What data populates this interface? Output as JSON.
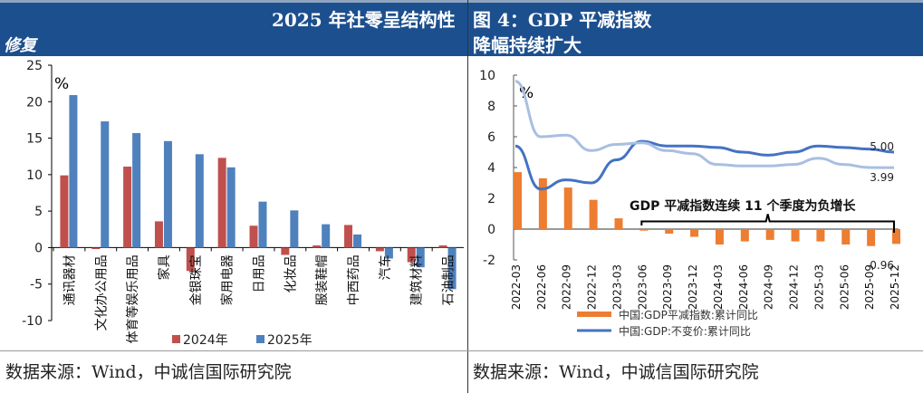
{
  "header": {
    "left_title_line1": "2025 年社零呈结构性",
    "left_title_line2": "修复",
    "right_title_line1": "图 4：GDP 平减指数",
    "right_title_line2": "降幅持续扩大"
  },
  "footer": {
    "left_source": "数据来源：Wind，中诚信国际研究院",
    "right_source": "数据来源：Wind，中诚信国际研究院"
  },
  "chart_data": [
    {
      "type": "bar",
      "unit_label": "%",
      "ylim": [
        -10,
        25
      ],
      "yticks": [
        25,
        20,
        15,
        10,
        5,
        0,
        -5,
        -10
      ],
      "categories": [
        "通讯器材",
        "文化办公用品",
        "体育等娱乐用品",
        "家具",
        "金银珠宝",
        "家用电器",
        "日用品",
        "化妆品",
        "服装鞋帽",
        "中西药品",
        "汽车",
        "建筑材料",
        "石油制品"
      ],
      "series": [
        {
          "name": "2024年",
          "color": "#c0504d",
          "values": [
            9.9,
            -0.2,
            11.1,
            3.6,
            -3.2,
            12.3,
            3.0,
            -1.0,
            0.3,
            3.1,
            -0.5,
            -2.0,
            0.3
          ]
        },
        {
          "name": "2025年",
          "color": "#4f81bd",
          "values": [
            20.9,
            17.3,
            15.7,
            14.6,
            12.8,
            11.0,
            6.3,
            5.1,
            3.2,
            1.8,
            -1.5,
            -2.7,
            -5.7
          ]
        }
      ],
      "legend": "bottom",
      "grid": false
    },
    {
      "type": "bar+line",
      "unit_label": "%",
      "ylim": [
        -2,
        10
      ],
      "yticks": [
        10,
        8,
        6,
        4,
        2,
        0,
        -2
      ],
      "categories": [
        "2022-03",
        "2022-06",
        "2022-09",
        "2022-12",
        "2023-03",
        "2023-06",
        "2023-09",
        "2023-12",
        "2024-03",
        "2024-06",
        "2024-09",
        "2024-12",
        "2025-03",
        "2025-06",
        "2025-09",
        "2025-12"
      ],
      "series": [
        {
          "name": "中国:GDP平减指数:累计同比",
          "kind": "bar",
          "color": "#ed7d31",
          "values": [
            3.7,
            3.3,
            2.7,
            1.9,
            0.7,
            -0.1,
            -0.3,
            -0.5,
            -1.0,
            -0.8,
            -0.7,
            -0.8,
            -0.8,
            -1.0,
            -1.1,
            -0.96
          ]
        },
        {
          "name": "中国:GDP:不变价:累计同比",
          "kind": "line",
          "color": "#4472c4",
          "values": [
            5.4,
            2.6,
            3.2,
            3.0,
            4.5,
            5.7,
            5.4,
            5.4,
            5.3,
            5.0,
            4.8,
            5.0,
            5.4,
            5.3,
            5.2,
            5.0
          ]
        },
        {
          "kind": "line",
          "color": "#a9bfe0",
          "values": [
            9.6,
            6.0,
            6.1,
            5.1,
            5.5,
            5.6,
            5.1,
            4.9,
            4.2,
            4.1,
            4.1,
            4.2,
            4.6,
            4.2,
            4.0,
            3.99
          ]
        }
      ],
      "annotations": {
        "brace_text": "GDP 平减指数连续 11 个季度为负增长",
        "label_gdp_last": "5.00",
        "label_light_last": "3.99",
        "label_bar_last": "-0.96"
      },
      "legend": "bottom",
      "grid": false
    }
  ]
}
